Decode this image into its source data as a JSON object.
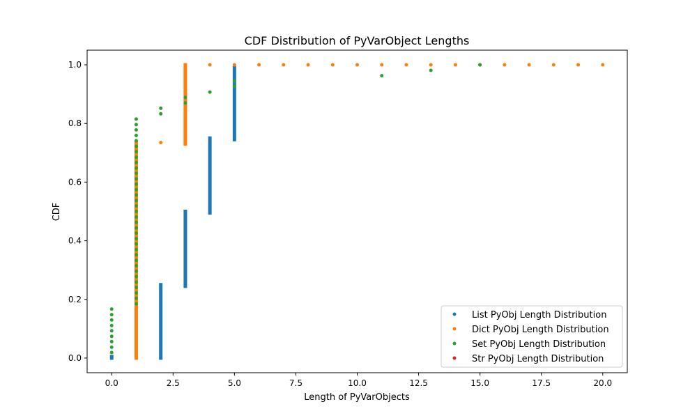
{
  "chart_data": {
    "type": "scatter",
    "title": "CDF Distribution of PyVarObject Lengths",
    "xlabel": "Length of PyVarObjects",
    "ylabel": "CDF",
    "xlim": [
      -1.0,
      21.0
    ],
    "ylim": [
      -0.05,
      1.05
    ],
    "xticks": [
      0.0,
      2.5,
      5.0,
      7.5,
      10.0,
      12.5,
      15.0,
      17.5,
      20.0
    ],
    "xtick_labels": [
      "0.0",
      "2.5",
      "5.0",
      "7.5",
      "10.0",
      "12.5",
      "15.0",
      "17.5",
      "20.0"
    ],
    "yticks": [
      0.0,
      0.2,
      0.4,
      0.6,
      0.8,
      1.0
    ],
    "ytick_labels": [
      "0.0",
      "0.2",
      "0.4",
      "0.6",
      "0.8",
      "1.0"
    ],
    "grid": false,
    "legend_position": "lower-right",
    "series": [
      {
        "name": "List PyObj Length Distribution",
        "color": "#1f77b4",
        "ranges": [
          {
            "x": 0,
            "y_start": 0.0,
            "y_end": 0.005
          },
          {
            "x": 2,
            "y_start": 0.0,
            "y_end": 0.25
          },
          {
            "x": 3,
            "y_start": 0.245,
            "y_end": 0.5
          },
          {
            "x": 4,
            "y_start": 0.495,
            "y_end": 0.75
          },
          {
            "x": 5,
            "y_start": 0.745,
            "y_end": 0.99
          }
        ],
        "points": []
      },
      {
        "name": "Dict PyObj Length Distribution",
        "color": "#ff7f0e",
        "ranges": [
          {
            "x": 1,
            "y_start": 0.0,
            "y_end": 0.735
          },
          {
            "x": 3,
            "y_start": 0.73,
            "y_end": 1.0
          }
        ],
        "points": [
          {
            "x": 2,
            "y": 0.735
          },
          {
            "x": 4,
            "y": 1.0
          },
          {
            "x": 5,
            "y": 1.0
          },
          {
            "x": 6,
            "y": 1.0
          },
          {
            "x": 7,
            "y": 1.0
          },
          {
            "x": 8,
            "y": 1.0
          },
          {
            "x": 9,
            "y": 1.0
          },
          {
            "x": 10,
            "y": 1.0
          },
          {
            "x": 11,
            "y": 1.0
          },
          {
            "x": 12,
            "y": 1.0
          },
          {
            "x": 13,
            "y": 1.0
          },
          {
            "x": 14,
            "y": 1.0
          },
          {
            "x": 15,
            "y": 1.0
          },
          {
            "x": 16,
            "y": 1.0
          },
          {
            "x": 17,
            "y": 1.0
          },
          {
            "x": 18,
            "y": 1.0
          },
          {
            "x": 19,
            "y": 1.0
          },
          {
            "x": 20,
            "y": 1.0
          }
        ]
      },
      {
        "name": "Set PyObj Length Distribution",
        "color": "#2ca02c",
        "ranges": [],
        "points": [
          {
            "x": 0,
            "y": 0.019
          },
          {
            "x": 0,
            "y": 0.037
          },
          {
            "x": 0,
            "y": 0.056
          },
          {
            "x": 0,
            "y": 0.074
          },
          {
            "x": 0,
            "y": 0.093
          },
          {
            "x": 0,
            "y": 0.111
          },
          {
            "x": 0,
            "y": 0.13
          },
          {
            "x": 0,
            "y": 0.148
          },
          {
            "x": 0,
            "y": 0.167
          },
          {
            "x": 1,
            "y": 0.185
          },
          {
            "x": 1,
            "y": 0.204
          },
          {
            "x": 1,
            "y": 0.222
          },
          {
            "x": 1,
            "y": 0.241
          },
          {
            "x": 1,
            "y": 0.259
          },
          {
            "x": 1,
            "y": 0.278
          },
          {
            "x": 1,
            "y": 0.296
          },
          {
            "x": 1,
            "y": 0.315
          },
          {
            "x": 1,
            "y": 0.333
          },
          {
            "x": 1,
            "y": 0.352
          },
          {
            "x": 1,
            "y": 0.37
          },
          {
            "x": 1,
            "y": 0.389
          },
          {
            "x": 1,
            "y": 0.407
          },
          {
            "x": 1,
            "y": 0.426
          },
          {
            "x": 1,
            "y": 0.444
          },
          {
            "x": 1,
            "y": 0.463
          },
          {
            "x": 1,
            "y": 0.481
          },
          {
            "x": 1,
            "y": 0.5
          },
          {
            "x": 1,
            "y": 0.519
          },
          {
            "x": 1,
            "y": 0.537
          },
          {
            "x": 1,
            "y": 0.556
          },
          {
            "x": 1,
            "y": 0.574
          },
          {
            "x": 1,
            "y": 0.593
          },
          {
            "x": 1,
            "y": 0.611
          },
          {
            "x": 1,
            "y": 0.63
          },
          {
            "x": 1,
            "y": 0.648
          },
          {
            "x": 1,
            "y": 0.667
          },
          {
            "x": 1,
            "y": 0.685
          },
          {
            "x": 1,
            "y": 0.704
          },
          {
            "x": 1,
            "y": 0.722
          },
          {
            "x": 1,
            "y": 0.741
          },
          {
            "x": 1,
            "y": 0.759
          },
          {
            "x": 1,
            "y": 0.778
          },
          {
            "x": 1,
            "y": 0.796
          },
          {
            "x": 1,
            "y": 0.815
          },
          {
            "x": 2,
            "y": 0.833
          },
          {
            "x": 2,
            "y": 0.852
          },
          {
            "x": 3,
            "y": 0.87
          },
          {
            "x": 3,
            "y": 0.889
          },
          {
            "x": 4,
            "y": 0.907
          },
          {
            "x": 5,
            "y": 0.926
          },
          {
            "x": 5,
            "y": 0.944
          },
          {
            "x": 11,
            "y": 0.963
          },
          {
            "x": 13,
            "y": 0.981
          },
          {
            "x": 15,
            "y": 1.0
          }
        ]
      },
      {
        "name": "Str PyObj Length Distribution",
        "color": "#d62728",
        "ranges": [],
        "points": []
      }
    ]
  }
}
